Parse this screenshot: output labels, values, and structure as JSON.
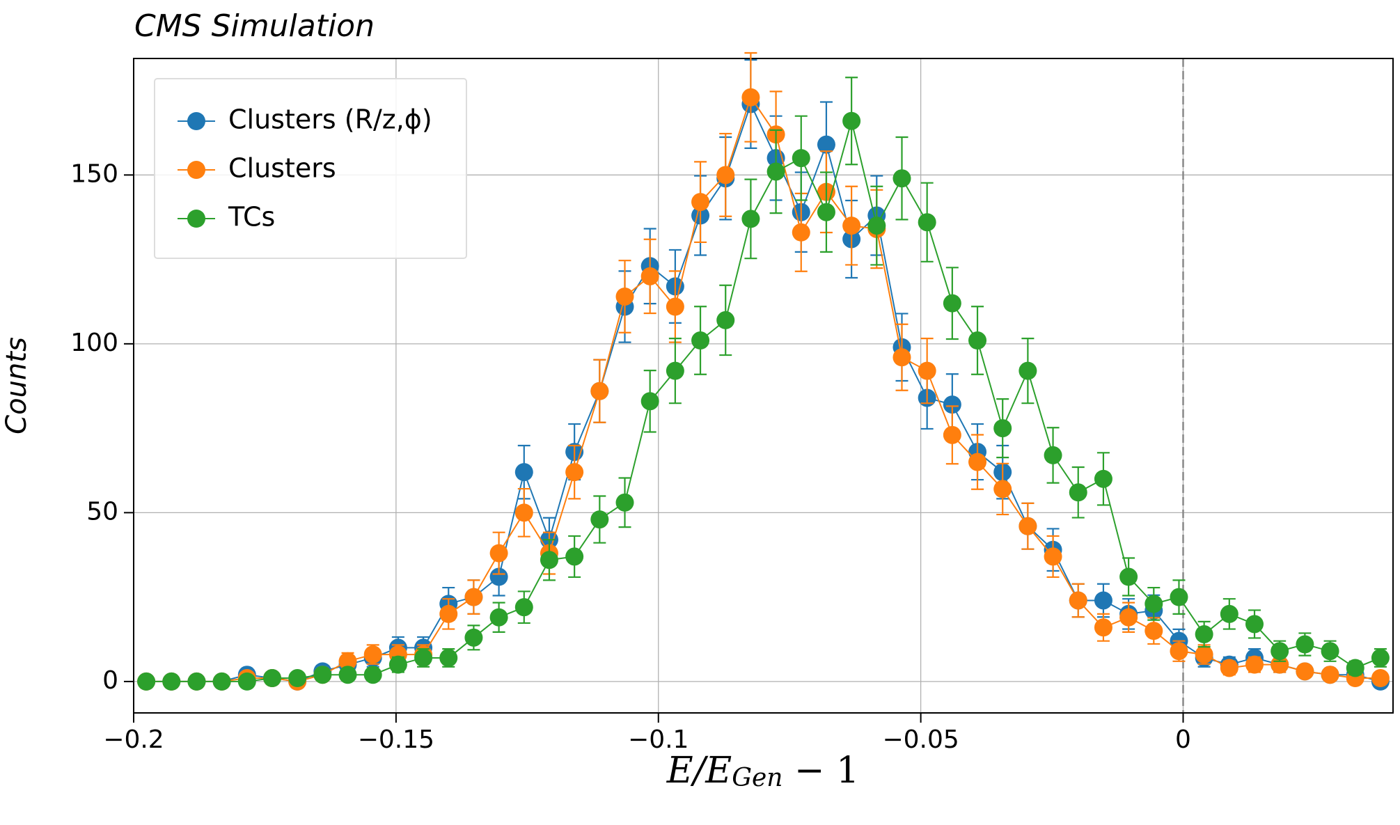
{
  "chart_data": {
    "type": "errorbar-line",
    "title": "CMS Simulation",
    "xlabel": [
      "E/E",
      "Gen",
      " − 1"
    ],
    "ylabel": "Counts",
    "x": [
      -0.1976,
      -0.1928,
      -0.188,
      -0.1832,
      -0.1784,
      -0.1736,
      -0.1688,
      -0.164,
      -0.1592,
      -0.1544,
      -0.1496,
      -0.1448,
      -0.14,
      -0.1352,
      -0.1304,
      -0.1256,
      -0.1208,
      -0.116,
      -0.1112,
      -0.1064,
      -0.1016,
      -0.0968,
      -0.092,
      -0.0872,
      -0.0824,
      -0.0776,
      -0.0728,
      -0.068,
      -0.0632,
      -0.0584,
      -0.0536,
      -0.0488,
      -0.044,
      -0.0392,
      -0.0344,
      -0.0296,
      -0.0248,
      -0.02,
      -0.0152,
      -0.0104,
      -0.0056,
      -0.0008,
      0.004,
      0.0088,
      0.0136,
      0.0184,
      0.0232,
      0.028,
      0.0328,
      0.0376
    ],
    "series": [
      {
        "name": "Clusters (R/z,ϕ)",
        "color": "#1f77b4",
        "values": [
          0,
          0,
          0,
          0,
          2,
          1,
          0,
          3,
          5,
          7,
          10,
          10,
          23,
          25,
          31,
          62,
          42,
          68,
          86,
          111,
          123,
          117,
          138,
          149,
          171,
          155,
          139,
          159,
          131,
          138,
          99,
          84,
          82,
          68,
          62,
          46,
          39,
          24,
          24,
          20,
          21,
          12,
          7,
          5,
          7,
          5,
          3,
          2,
          2,
          0
        ]
      },
      {
        "name": "Clusters",
        "color": "#ff7f0e",
        "values": [
          0,
          0,
          0,
          0,
          1,
          1,
          0,
          2,
          6,
          8,
          8,
          8,
          20,
          25,
          38,
          50,
          38,
          62,
          86,
          114,
          120,
          111,
          142,
          150,
          173,
          162,
          133,
          145,
          135,
          134,
          96,
          92,
          73,
          65,
          57,
          46,
          37,
          24,
          16,
          19,
          15,
          9,
          8,
          4,
          5,
          5,
          3,
          2,
          1,
          1
        ]
      },
      {
        "name": "TCs",
        "color": "#2ca02c",
        "values": [
          0,
          0,
          0,
          0,
          0,
          1,
          1,
          2,
          2,
          2,
          5,
          7,
          7,
          13,
          19,
          22,
          36,
          37,
          48,
          53,
          83,
          92,
          101,
          107,
          137,
          151,
          155,
          139,
          166,
          135,
          149,
          136,
          112,
          101,
          75,
          92,
          67,
          56,
          60,
          31,
          23,
          25,
          14,
          20,
          17,
          9,
          11,
          9,
          4,
          7
        ]
      }
    ],
    "yerr": "poisson",
    "xlim": [
      -0.2,
      0.04
    ],
    "ylim": [
      -9.3,
      184.5
    ],
    "xticks": [
      {
        "value": -0.2,
        "label": "−0.2"
      },
      {
        "value": -0.15,
        "label": "−0.15"
      },
      {
        "value": -0.1,
        "label": "−0.1"
      },
      {
        "value": -0.05,
        "label": "−0.05"
      },
      0
    ],
    "yticks": [
      0,
      50,
      100,
      150
    ],
    "grid": true,
    "vline": 0,
    "legend": "upper left"
  }
}
